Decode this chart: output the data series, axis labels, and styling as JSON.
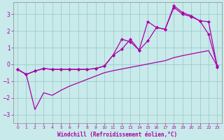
{
  "xlabel": "Windchill (Refroidissement éolien,°C)",
  "bg_color": "#c8eaea",
  "grid_color": "#a0cccc",
  "line_color": "#aa00aa",
  "xlim": [
    -0.5,
    23.5
  ],
  "ylim": [
    -3.5,
    3.7
  ],
  "yticks": [
    -3,
    -2,
    -1,
    0,
    1,
    2,
    3
  ],
  "xticks": [
    0,
    1,
    2,
    3,
    4,
    5,
    6,
    7,
    8,
    9,
    10,
    11,
    12,
    13,
    14,
    15,
    16,
    17,
    18,
    19,
    20,
    21,
    22,
    23
  ],
  "curve1_x": [
    0,
    1,
    2,
    3,
    4,
    5,
    6,
    7,
    8,
    9,
    10,
    11,
    12,
    13,
    14,
    15,
    16,
    17,
    18,
    19,
    20,
    21,
    22,
    23
  ],
  "curve1_y": [
    -0.3,
    -0.6,
    -0.4,
    -0.25,
    -0.3,
    -0.3,
    -0.3,
    -0.3,
    -0.3,
    -0.25,
    -0.1,
    0.55,
    1.5,
    1.35,
    0.85,
    1.4,
    2.2,
    2.1,
    3.5,
    3.1,
    2.9,
    2.6,
    1.8,
    -0.1
  ],
  "curve2_x": [
    0,
    1,
    2,
    3,
    4,
    5,
    6,
    7,
    8,
    9,
    10,
    11,
    12,
    13,
    14,
    15,
    16,
    17,
    18,
    19,
    20,
    21,
    22,
    23
  ],
  "curve2_y": [
    -0.3,
    -0.6,
    -0.4,
    -0.25,
    -0.3,
    -0.3,
    -0.3,
    -0.3,
    -0.3,
    -0.25,
    -0.1,
    0.55,
    0.9,
    1.5,
    0.85,
    2.55,
    2.2,
    2.1,
    3.4,
    3.0,
    2.85,
    2.6,
    2.55,
    -0.15
  ],
  "curve3_x": [
    0,
    1,
    2,
    3,
    4,
    5,
    6,
    7,
    8,
    9,
    10,
    11,
    12,
    13,
    14,
    15,
    16,
    17,
    18,
    19,
    20,
    21,
    22,
    23
  ],
  "curve3_y": [
    -0.3,
    -0.6,
    -2.7,
    -1.7,
    -1.85,
    -1.55,
    -1.3,
    -1.1,
    -0.9,
    -0.7,
    -0.5,
    -0.38,
    -0.28,
    -0.18,
    -0.08,
    0.02,
    0.12,
    0.22,
    0.4,
    0.52,
    0.62,
    0.72,
    0.82,
    -0.1
  ]
}
